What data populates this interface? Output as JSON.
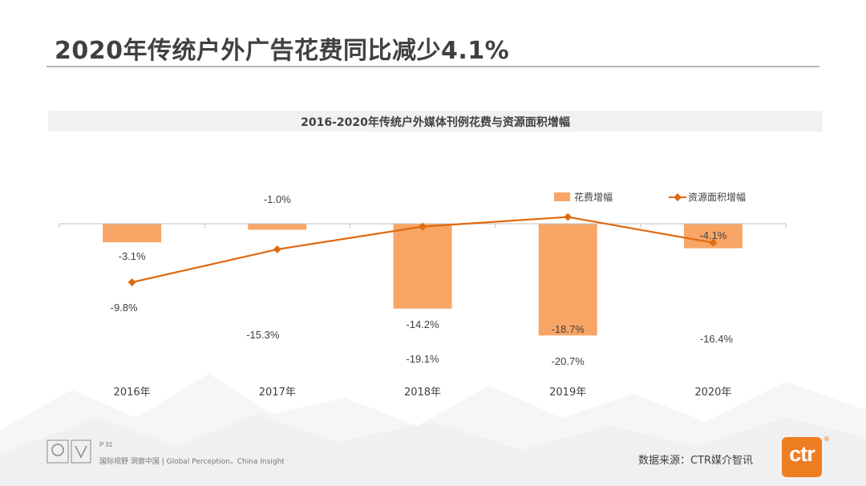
{
  "page": {
    "title": "2020年传统户外广告花费同比减少4.1%",
    "page_number": "P 31",
    "tagline": "国际视野  洞察中国 |  Global Perception，China Insight",
    "source": "数据来源：CTR媒介智讯",
    "logo_text": "ctr",
    "logo_mark": "®"
  },
  "colors": {
    "bar": "#f8a566",
    "line": "#e0690f",
    "brand": "#ef7d22",
    "text": "#404040"
  },
  "chart_data": {
    "type": "bar",
    "title": "2016-2020年传统户外媒体刊例花费与资源面积增幅",
    "categories": [
      "2016年",
      "2017年",
      "2018年",
      "2019年",
      "2020年"
    ],
    "series": [
      {
        "name": "花费增幅",
        "type": "bar",
        "values": [
          -3.1,
          -1.0,
          -14.2,
          -18.7,
          -4.1
        ],
        "labels": [
          "-3.1%",
          "-1.0%",
          "-14.2%",
          "-18.7%",
          "-4.1%"
        ]
      },
      {
        "name": "资源面积增幅",
        "type": "line",
        "values": [
          -9.8,
          -15.3,
          -19.1,
          -20.7,
          -16.4
        ],
        "labels": [
          "-9.8%",
          "-15.3%",
          "-19.1%",
          "-20.7%",
          "-16.4%"
        ]
      }
    ],
    "legend_position": "top-right",
    "grid": false,
    "axes_note": "bars use the primary axis; the line is plotted on a separate secondary axis; no axis ticks are printed"
  }
}
